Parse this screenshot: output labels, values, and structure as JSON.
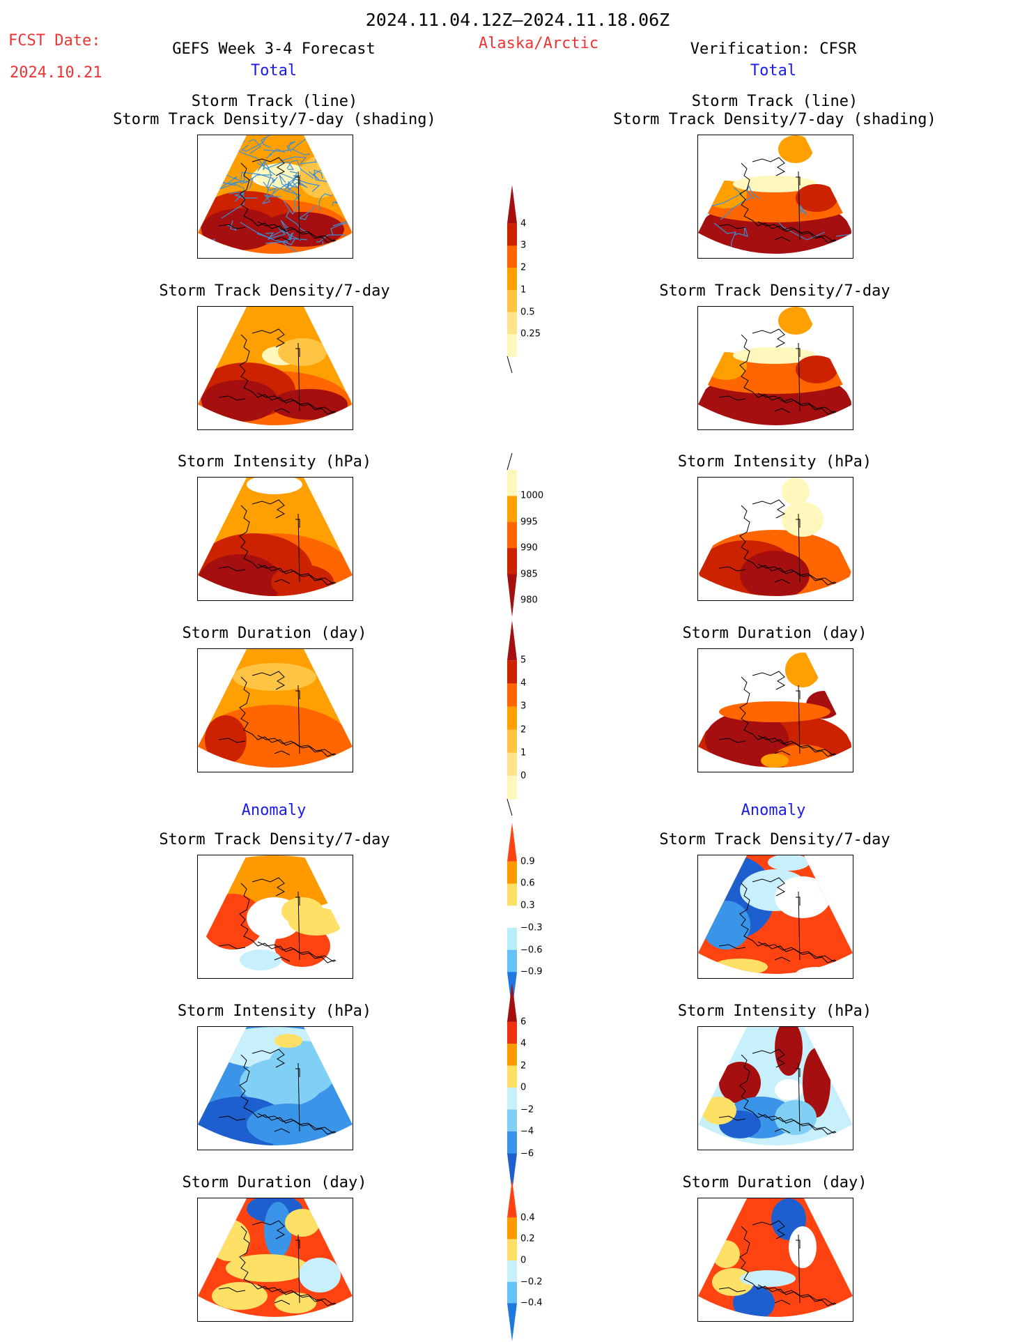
{
  "header": {
    "date_range": "2024.11.04.12Z–2024.11.18.06Z",
    "fcst_label": "FCST Date:",
    "fcst_date": "2024.10.21",
    "forecast_title": "GEFS Week 3-4 Forecast",
    "region": "Alaska/Arctic",
    "verification_title": "Verification: CFSR"
  },
  "columns": [
    {
      "total_label": "Total",
      "anomaly_label": "Anomaly",
      "panels": [
        {
          "title_lines": [
            "Storm Track (line)",
            "Storm Track Density/7-day (shading)"
          ],
          "colorbar": "density"
        },
        {
          "title_lines": [
            "Storm Track Density/7-day"
          ],
          "colorbar": "density"
        },
        {
          "title_lines": [
            "Storm Intensity (hPa)"
          ],
          "colorbar": "intensity"
        },
        {
          "title_lines": [
            "Storm Duration (day)"
          ],
          "colorbar": "duration"
        },
        {
          "title_lines": [
            "Storm Track Density/7-day"
          ],
          "colorbar": "density_anom"
        },
        {
          "title_lines": [
            "Storm Intensity (hPa)"
          ],
          "colorbar": "intensity_anom"
        },
        {
          "title_lines": [
            "Storm Duration (day)"
          ],
          "colorbar": "duration_anom"
        }
      ]
    },
    {
      "total_label": "Total",
      "anomaly_label": "Anomaly",
      "panels": [
        {
          "title_lines": [
            "Storm Track (line)",
            "Storm Track Density/7-day (shading)"
          ],
          "colorbar": "density"
        },
        {
          "title_lines": [
            "Storm Track Density/7-day"
          ],
          "colorbar": "density"
        },
        {
          "title_lines": [
            "Storm Intensity (hPa)"
          ],
          "colorbar": "intensity"
        },
        {
          "title_lines": [
            "Storm Duration (day)"
          ],
          "colorbar": "duration"
        },
        {
          "title_lines": [
            "Storm Track Density/7-day"
          ],
          "colorbar": "density_anom"
        },
        {
          "title_lines": [
            "Storm Intensity (hPa)"
          ],
          "colorbar": "intensity_anom"
        },
        {
          "title_lines": [
            "Storm Duration (day)"
          ],
          "colorbar": "duration_anom"
        }
      ]
    }
  ],
  "colorbars": {
    "density": {
      "labels": [
        "4",
        "3",
        "2",
        "1",
        "0.5",
        "0.25"
      ],
      "colors": [
        "#a50f0f",
        "#cc2200",
        "#ff6600",
        "#ffa000",
        "#ffc444",
        "#ffe38a",
        "#fff7bb"
      ],
      "arrow": "top"
    },
    "intensity": {
      "labels": [
        "1000",
        "995",
        "990",
        "985",
        "980"
      ],
      "colors": [
        "#fff7bb",
        "#ffa000",
        "#ff6600",
        "#cc2200",
        "#a50f0f"
      ],
      "arrow": "bottom"
    },
    "duration": {
      "labels": [
        "5",
        "4",
        "3",
        "2",
        "1",
        "0"
      ],
      "colors": [
        "#a50f0f",
        "#cc2200",
        "#ff6600",
        "#ffa000",
        "#ffc444",
        "#ffe38a",
        "#fff7bb"
      ],
      "arrow": "top"
    },
    "density_anom": {
      "labels": [
        "0.9",
        "0.6",
        "0.3",
        "−0.3",
        "−0.6",
        "−0.9"
      ],
      "colors": [
        "#ff4411",
        "#ff9900",
        "#ffe066",
        "#ffffff",
        "#b8eefa",
        "#66c2f5",
        "#1e78e0"
      ],
      "arrow": "both"
    },
    "intensity_anom": {
      "labels": [
        "6",
        "4",
        "2",
        "0",
        "−2",
        "−4",
        "−6"
      ],
      "colors": [
        "#a50f0f",
        "#ee3311",
        "#ff9900",
        "#ffe066",
        "#c8f0fc",
        "#80cff5",
        "#3a94e8",
        "#1e5fd0"
      ],
      "arrow": "both"
    },
    "duration_anom": {
      "labels": [
        "0.4",
        "0.2",
        "0",
        "−0.2",
        "−0.4"
      ],
      "colors": [
        "#ff4411",
        "#ff9900",
        "#ffe066",
        "#c8f0fc",
        "#66c2f5",
        "#1e78e0"
      ],
      "arrow": "both"
    }
  },
  "palette": {
    "title_red": "#ee3333",
    "label_blue": "#1a1aee",
    "track_line": "#3b8fd9",
    "coast": "#000000"
  }
}
